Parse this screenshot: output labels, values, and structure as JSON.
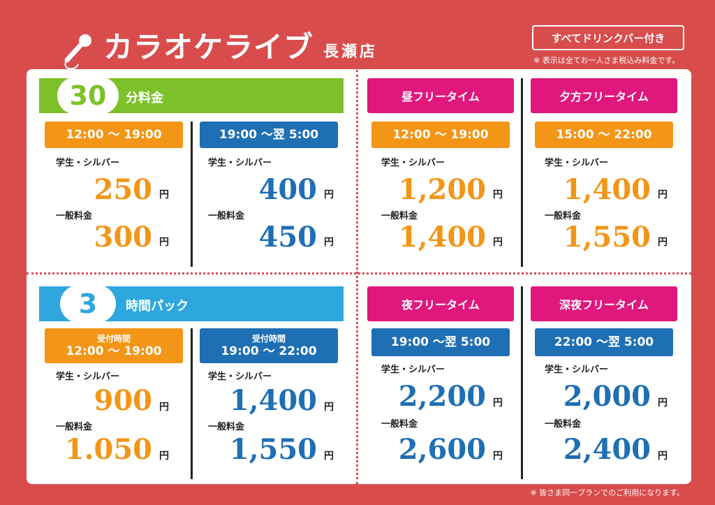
{
  "header": {
    "title": "カラオケライブ",
    "branch": "長瀬店",
    "drink_badge": "すべてドリンクバー付き",
    "tax_note": "※ 表示は全てお一人さま税込み料金です。",
    "plan_note": "※ 皆さま同一プランでのご利用になります。"
  },
  "labels": {
    "student": "学生・シルバー",
    "general": "一般料金",
    "yen": "円",
    "reception": "受付時間"
  },
  "plan30": {
    "number": "30",
    "label": "分料金",
    "slots": [
      {
        "time": "12:00 ～ 19:00",
        "student": "250",
        "general": "300"
      },
      {
        "time": "19:00 ～翌 5:00",
        "student": "400",
        "general": "450"
      }
    ]
  },
  "plan3h": {
    "number": "3",
    "label": "時間パック",
    "slots": [
      {
        "time": "12:00 ～ 19:00",
        "student": "900",
        "general": "1.050"
      },
      {
        "time": "19:00 ～ 22:00",
        "student": "1,400",
        "general": "1,550"
      }
    ]
  },
  "free": [
    {
      "name": "昼フリータイム",
      "time": "12:00 ～ 19:00",
      "student": "1,200",
      "general": "1,400"
    },
    {
      "name": "夕方フリータイム",
      "time": "15:00 ～ 22:00",
      "student": "1,400",
      "general": "1,550"
    },
    {
      "name": "夜フリータイム",
      "time": "19:00 ～翌 5:00",
      "student": "2,200",
      "general": "2,600"
    },
    {
      "name": "深夜フリータイム",
      "time": "22:00 ～翌 5:00",
      "student": "2,000",
      "general": "2,400"
    }
  ],
  "colors": {
    "background": "#d94c4c",
    "green": "#7dc12a",
    "blue": "#2ea7df",
    "orange": "#f39516",
    "navy": "#1f6fb4",
    "magenta": "#e0177d"
  }
}
